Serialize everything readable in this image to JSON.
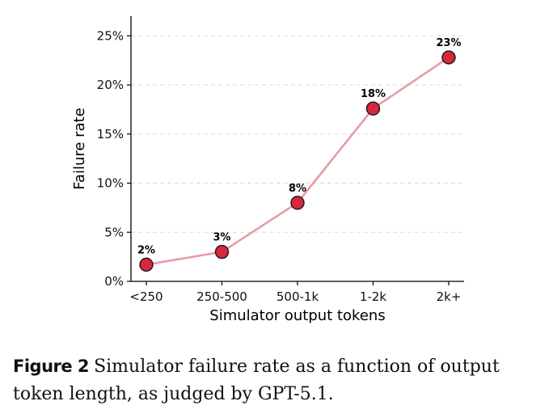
{
  "chart_data": {
    "type": "line",
    "title": "",
    "xlabel": "Simulator output tokens",
    "ylabel": "Failure rate",
    "categories": [
      "<250",
      "250-500",
      "500-1k",
      "1-2k",
      "2k+"
    ],
    "values": [
      0.017,
      0.03,
      0.08,
      0.176,
      0.228
    ],
    "value_labels": [
      "2%",
      "3%",
      "8%",
      "18%",
      "23%"
    ],
    "ylim": [
      0,
      0.27
    ],
    "yticks": [
      0,
      0.05,
      0.1,
      0.15,
      0.2,
      0.25
    ],
    "ytick_labels": [
      "0%",
      "5%",
      "10%",
      "15%",
      "20%",
      "25%"
    ],
    "grid": "horizontal dashed",
    "line_color": "#ea9aa4",
    "marker_color": "#d7263d",
    "marker_edge_color": "#1a1a1a"
  },
  "caption": {
    "label": "Figure 2",
    "text": "Simulator failure rate as a function of output token length, as judged by GPT-5.1."
  }
}
